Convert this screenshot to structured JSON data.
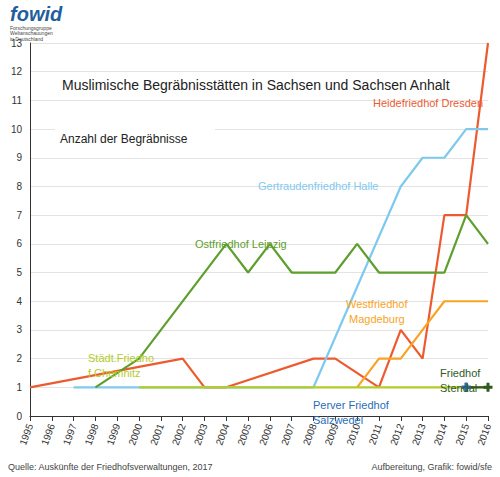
{
  "chart_data": {
    "type": "line",
    "title": "Muslimische Begräbnisstätten in Sachsen und Sachsen Anhalt",
    "subtitle": "Anzahl der Begräbnisse",
    "annotations": {
      "logo": "fowid",
      "logo_subtitle": "Forschungsgruppe Weltanschauungen in Deutschland",
      "source": "Quelle: Auskünfte der Friedhofsverwaltungen, 2017",
      "credit": "Aufbereitung, Grafik: fowid/sfe"
    },
    "xlim": [
      1995,
      2016
    ],
    "xticks": [
      1995,
      1996,
      1997,
      1998,
      1999,
      2000,
      2001,
      2002,
      2003,
      2004,
      2005,
      2006,
      2007,
      2008,
      2009,
      2010,
      2011,
      2012,
      2013,
      2014,
      2015,
      2016
    ],
    "ylim": [
      0,
      13
    ],
    "yticks": [
      0,
      1,
      2,
      3,
      4,
      5,
      6,
      7,
      8,
      9,
      10,
      11,
      12,
      13
    ],
    "grid": true,
    "series": [
      {
        "name": "Heidefriedhof Dresden",
        "color": "#ee5a2f",
        "marker": "none",
        "x": [
          1995,
          2002,
          2003,
          2004,
          2008,
          2009,
          2011,
          2012,
          2013,
          2014,
          2015,
          2016
        ],
        "values": [
          1,
          2,
          1,
          1,
          2,
          2,
          1,
          3,
          2,
          7,
          7,
          13
        ]
      },
      {
        "name": "Gertraudenfriedhof Halle",
        "color": "#7fc9ef",
        "marker": "none",
        "x": [
          1997,
          2008,
          2012,
          2013,
          2014,
          2015,
          2016
        ],
        "values": [
          1,
          1,
          8,
          9,
          9,
          10,
          10
        ]
      },
      {
        "name": "Ostfriedhof Leipzig",
        "color": "#5e9e2c",
        "marker": "none",
        "x": [
          1998,
          2000,
          2004,
          2005,
          2006,
          2007,
          2008,
          2009,
          2010,
          2011,
          2012,
          2013,
          2014,
          2015,
          2016
        ],
        "values": [
          1,
          2,
          6,
          5,
          6,
          5,
          5,
          5,
          6,
          5,
          5,
          5,
          5,
          7,
          6
        ]
      },
      {
        "name": "Westfriedhof Magdeburg",
        "color": "#f7a425",
        "marker": "none",
        "x": [
          2010,
          2011,
          2012,
          2013,
          2014,
          2015,
          2016
        ],
        "values": [
          1,
          2,
          2,
          3,
          4,
          4,
          4
        ]
      },
      {
        "name": "Städt.Friedhof Chemnitz",
        "color": "#b3cc2a",
        "marker": "none",
        "x": [
          2000,
          2016
        ],
        "values": [
          1,
          1
        ]
      },
      {
        "name": "Friedhof Stendal",
        "color": "#2f5a1e",
        "marker": "cross",
        "x": [
          2015,
          2016
        ],
        "values": [
          1,
          1
        ]
      },
      {
        "name": "Perver Friedhof Salzwedel",
        "color": "#2a6db5",
        "marker": "cross",
        "x": [
          2015
        ],
        "values": [
          1
        ]
      }
    ]
  }
}
